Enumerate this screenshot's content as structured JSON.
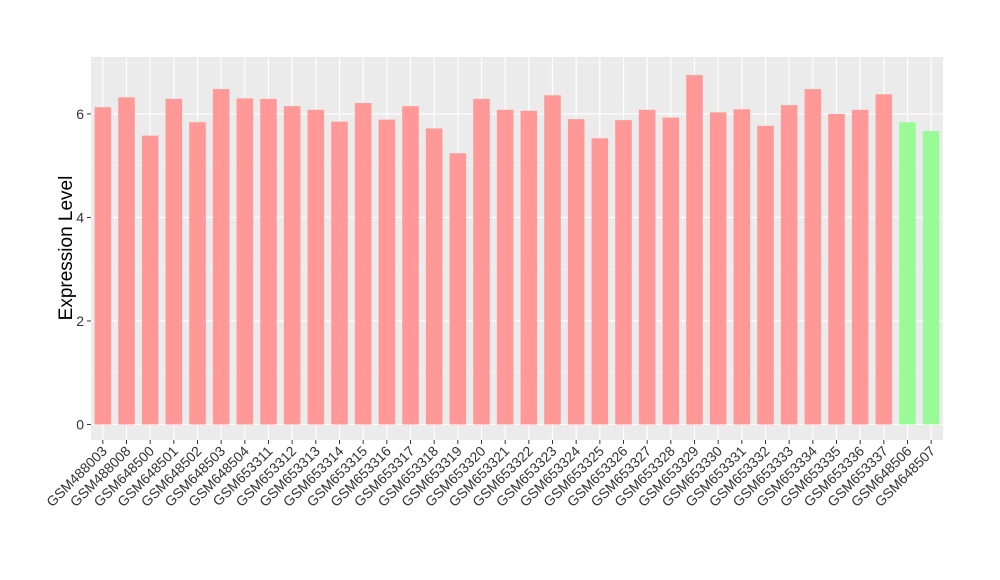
{
  "chart_data": {
    "type": "bar",
    "title": "",
    "xlabel": "",
    "ylabel": "Expression Level",
    "ylim": [
      -0.3,
      7.1
    ],
    "yticks": [
      0,
      2,
      4,
      6
    ],
    "grid": true,
    "legend": "none",
    "categories": [
      "GSM488003",
      "GSM488008",
      "GSM648500",
      "GSM648501",
      "GSM648502",
      "GSM648503",
      "GSM648504",
      "GSM653311",
      "GSM653312",
      "GSM653313",
      "GSM653314",
      "GSM653315",
      "GSM653316",
      "GSM653317",
      "GSM653318",
      "GSM653319",
      "GSM653320",
      "GSM653321",
      "GSM653322",
      "GSM653323",
      "GSM653324",
      "GSM653325",
      "GSM653326",
      "GSM653327",
      "GSM653328",
      "GSM653329",
      "GSM653330",
      "GSM653331",
      "GSM653332",
      "GSM653333",
      "GSM653334",
      "GSM653335",
      "GSM653336",
      "GSM653337",
      "GSM648506",
      "GSM648507"
    ],
    "values": [
      6.13,
      6.32,
      5.58,
      6.29,
      5.84,
      6.48,
      6.3,
      6.29,
      6.15,
      6.08,
      5.85,
      6.21,
      5.89,
      6.15,
      5.72,
      5.24,
      6.29,
      6.08,
      6.06,
      6.36,
      5.9,
      5.53,
      5.88,
      6.08,
      5.93,
      6.75,
      6.03,
      6.09,
      5.77,
      6.17,
      6.48,
      6.0,
      6.08,
      6.38,
      5.84,
      5.67
    ],
    "bar_colors": [
      "#ff9896",
      "#ff9896",
      "#ff9896",
      "#ff9896",
      "#ff9896",
      "#ff9896",
      "#ff9896",
      "#ff9896",
      "#ff9896",
      "#ff9896",
      "#ff9896",
      "#ff9896",
      "#ff9896",
      "#ff9896",
      "#ff9896",
      "#ff9896",
      "#ff9896",
      "#ff9896",
      "#ff9896",
      "#ff9896",
      "#ff9896",
      "#ff9896",
      "#ff9896",
      "#ff9896",
      "#ff9896",
      "#ff9896",
      "#ff9896",
      "#ff9896",
      "#ff9896",
      "#ff9896",
      "#ff9896",
      "#ff9896",
      "#ff9896",
      "#ff9896",
      "#98fb98",
      "#98fb98"
    ],
    "colors": {
      "panel_bg": "#ebebeb",
      "grid_major": "#ffffff",
      "grid_minor": "#f5f5f5",
      "tick": "#333333"
    }
  }
}
